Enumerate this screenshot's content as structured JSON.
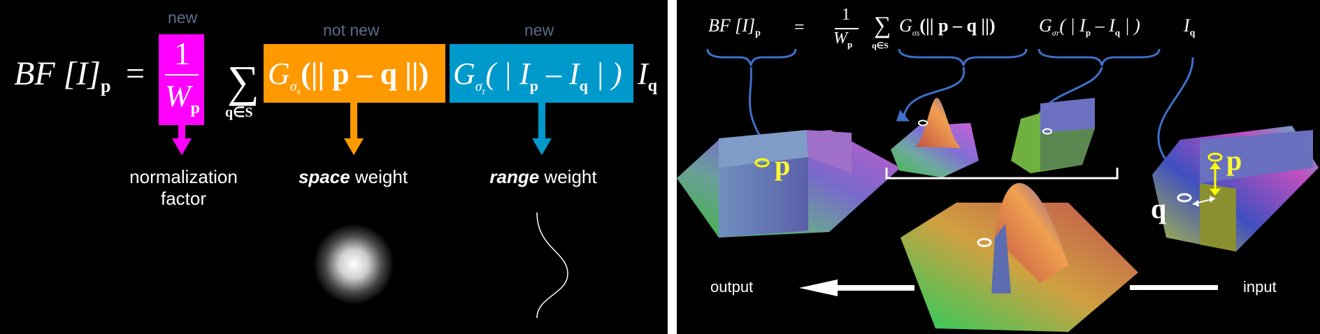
{
  "left_panel": {
    "labels": {
      "new_1": "new",
      "not_new": "not new",
      "new_2": "new"
    },
    "formula": {
      "lhs": "BF [I]",
      "lhs_sub": "p",
      "equals": "=",
      "frac_num": "1",
      "frac_den": "W",
      "frac_den_sub": "p",
      "sum_sub": "q∈S",
      "space_term": "G",
      "space_sub": "σ",
      "space_subsub": "s",
      "space_arg": "(|| p – q ||)",
      "range_term": "G",
      "range_sub": "σ",
      "range_subsub": "r",
      "range_arg": "( | I",
      "range_arg_p": "p",
      "range_arg_mid": " – I",
      "range_arg_q": "q",
      "range_arg_end": " | )",
      "tail": "I",
      "tail_sub": "q"
    },
    "captions": {
      "normalization_line1": "normalization",
      "normalization_line2": "factor",
      "space_bold": "space",
      "space_rest": " weight",
      "range_bold": "range",
      "range_rest": " weight"
    },
    "colors": {
      "normalization": "#ff00ff",
      "space": "#ff9900",
      "range": "#0099cc"
    }
  },
  "right_panel": {
    "formula": {
      "lhs": "BF [I]",
      "lhs_sub": "p",
      "equals": "=",
      "frac_num": "1",
      "frac_den": "W",
      "frac_den_sub": "p",
      "sum_sub": "q∈S",
      "space_term": "G",
      "space_subscript": "σs",
      "space_arg": "(|| p – q ||)",
      "range_term": "G",
      "range_subscript": "σr",
      "range_arg": "( | I",
      "range_p": "p",
      "range_mid": " – I",
      "range_q": "q",
      "range_end": " | )",
      "tail": "I",
      "tail_sub": "q"
    },
    "point_labels": {
      "output_p": "p",
      "input_p": "p",
      "input_q": "q"
    },
    "captions": {
      "output": "output",
      "input": "input"
    }
  }
}
